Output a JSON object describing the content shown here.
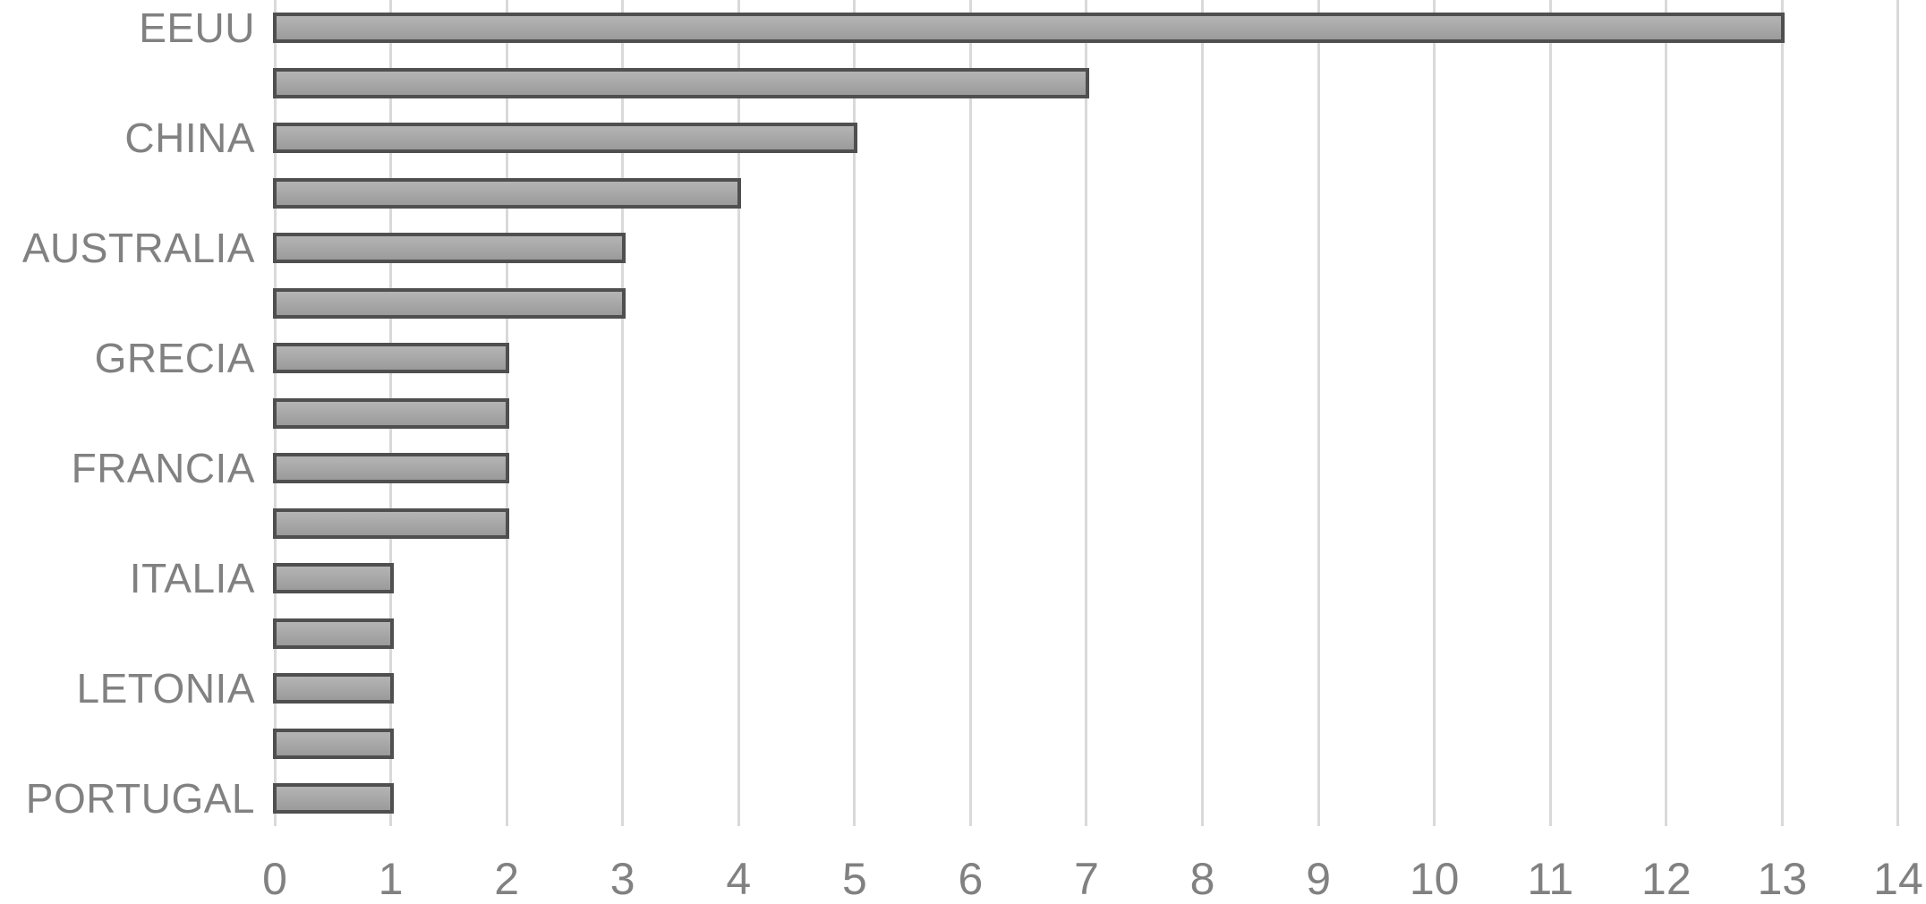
{
  "chart_data": {
    "type": "bar",
    "orientation": "horizontal",
    "title": "",
    "xlabel": "",
    "ylabel": "",
    "xlim": [
      0,
      14
    ],
    "grid": "vertical-gridlines-only",
    "legend_position": "none",
    "categories": [
      "EEUU",
      "",
      "CHINA",
      "",
      "AUSTRALIA",
      "",
      "GRECIA",
      "",
      "FRANCIA",
      "",
      "ITALIA",
      "",
      "LETONIA",
      "",
      "PORTUGAL"
    ],
    "values": [
      13,
      7,
      5,
      4,
      3,
      3,
      2,
      2,
      2,
      2,
      1,
      1,
      1,
      1,
      1
    ],
    "visible_category_labels": [
      "EEUU",
      "CHINA",
      "AUSTRALIA",
      "GRECIA",
      "FRANCIA",
      "ITALIA",
      "LETONIA",
      "PORTUGAL"
    ],
    "x_ticks": [
      0,
      1,
      2,
      3,
      4,
      5,
      6,
      7,
      8,
      9,
      10,
      11,
      12,
      13,
      14
    ],
    "x_tick_labels": [
      "0",
      "1",
      "2",
      "3",
      "4",
      "5",
      "6",
      "7",
      "8",
      "9",
      "10",
      "11",
      "12",
      "13",
      "14"
    ],
    "colors": {
      "background": "#ffffff",
      "bar_fill_top": "#b4b4b4",
      "bar_fill_bottom": "#9b9b9b",
      "bar_border": "#4f4f4f",
      "gridline": "#d9d9d9",
      "label_text": "#818181"
    }
  }
}
